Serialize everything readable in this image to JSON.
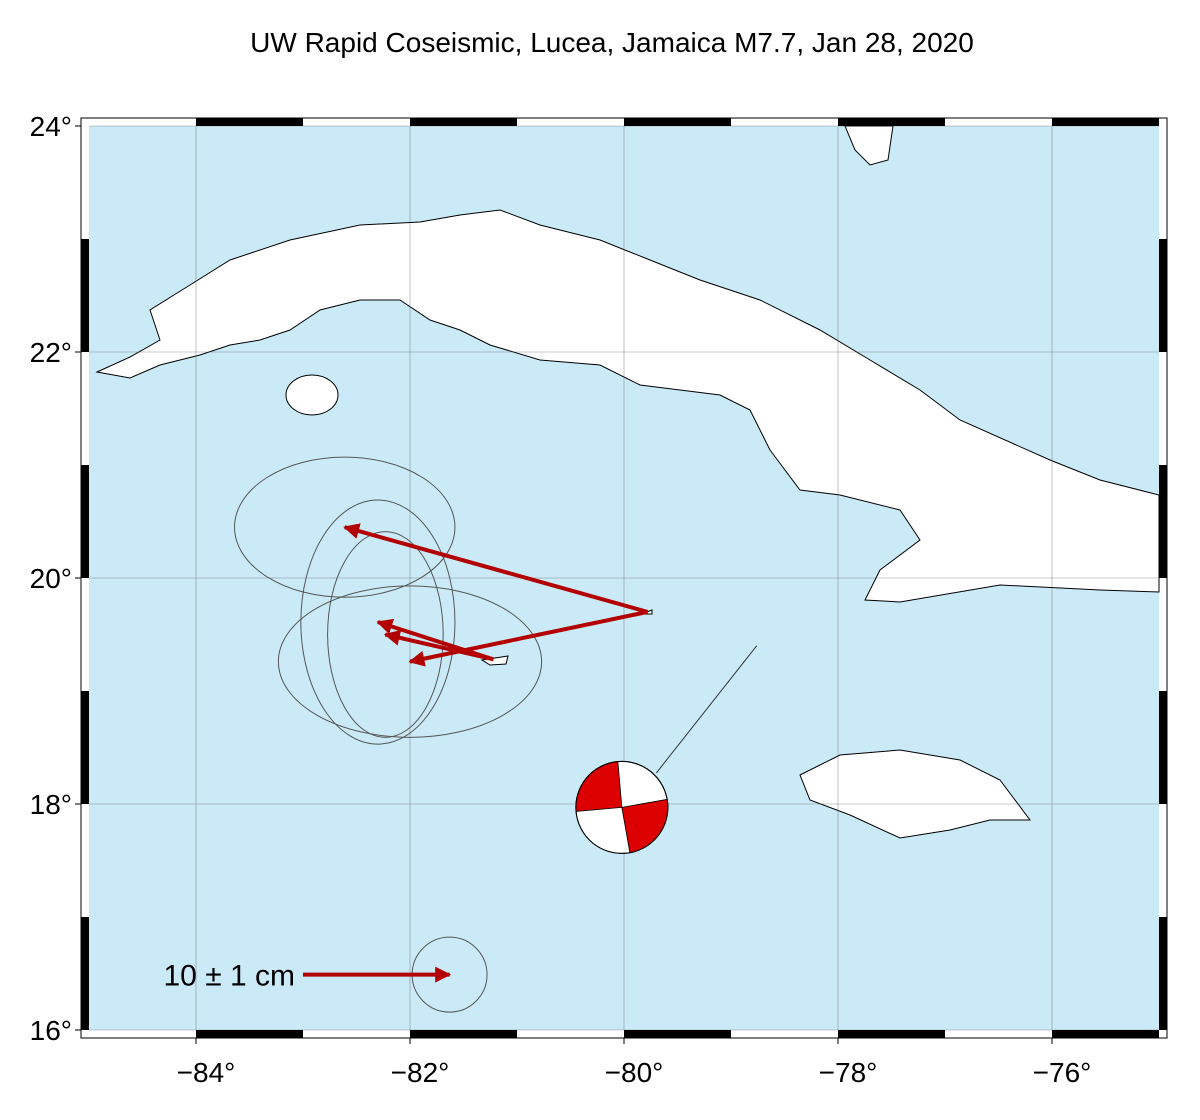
{
  "chart_data": {
    "type": "map",
    "title": "UW Rapid Coseismic, Lucea, Jamaica M7.7, Jan 28, 2020",
    "xlim": [
      -85,
      -75
    ],
    "ylim": [
      16,
      24
    ],
    "xticks": [
      {
        "value": -84,
        "label": "−84°"
      },
      {
        "value": -82,
        "label": "−82°"
      },
      {
        "value": -80,
        "label": "−80°"
      },
      {
        "value": -78,
        "label": "−78°"
      },
      {
        "value": -76,
        "label": "−76°"
      }
    ],
    "yticks": [
      {
        "value": 16,
        "label": "16°"
      },
      {
        "value": 18,
        "label": "18°"
      },
      {
        "value": 20,
        "label": "20°"
      },
      {
        "value": 22,
        "label": "22°"
      },
      {
        "value": 24,
        "label": "24°"
      }
    ],
    "grid": true,
    "color": "#b30000",
    "vectors": [
      {
        "start": [
          -79.78,
          19.7
        ],
        "end": [
          -82.61,
          20.45
        ],
        "ellipse": [
          1.03,
          0.62
        ]
      },
      {
        "start": [
          -79.78,
          19.7
        ],
        "end": [
          -82.0,
          19.26
        ],
        "ellipse": [
          1.23,
          0.67
        ]
      },
      {
        "start": [
          -81.22,
          19.28
        ],
        "end": [
          -82.3,
          19.61
        ],
        "ellipse": [
          0.72,
          1.08
        ]
      },
      {
        "start": [
          -81.22,
          19.28
        ],
        "end": [
          -82.23,
          19.5
        ],
        "ellipse": [
          0.54,
          0.91
        ]
      }
    ],
    "scale": {
      "label": "10 ± 1 cm",
      "start": [
        -83.0,
        16.49
      ],
      "end": [
        -81.63,
        16.49
      ],
      "radius": 0.35
    },
    "mechanism": {
      "position": [
        -80.02,
        17.97
      ],
      "epicenter": [
        -78.76,
        19.4
      ],
      "radius": 0.43,
      "color": "#dd0000"
    }
  }
}
